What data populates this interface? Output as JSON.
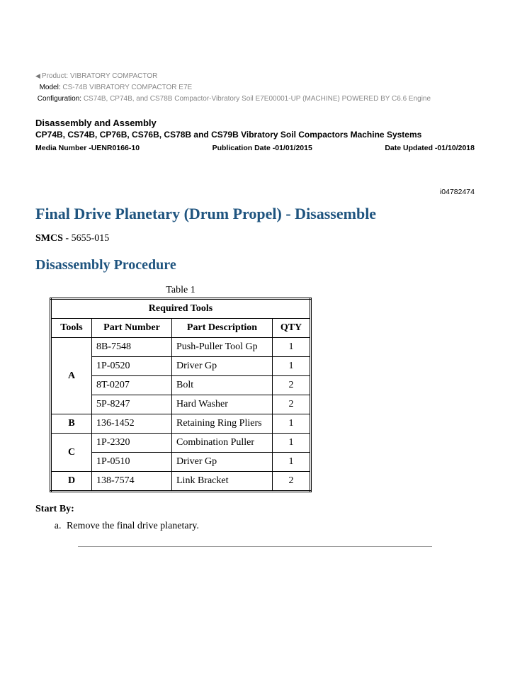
{
  "product": {
    "product_label": "Product:",
    "product_value": "VIBRATORY COMPACTOR",
    "model_label": "Model:",
    "model_value": "CS-74B VIBRATORY COMPACTOR E7E",
    "config_label": "Configuration:",
    "config_value": "CS74B, CP74B, and CS78B Compactor-Vibratory Soil E7E00001-UP (MACHINE) POWERED BY C6.6 Engine"
  },
  "header": {
    "section_title": "Disassembly and Assembly",
    "subtitle": "CP74B, CS74B, CP76B, CS76B, CS78B and CS79B Vibratory Soil Compactors Machine Systems",
    "media_number": "Media Number -UENR0166-10",
    "pub_date": "Publication Date -01/01/2015",
    "date_updated": "Date Updated -01/10/2018",
    "doc_id": "i04782474"
  },
  "main_title": "Final Drive Planetary (Drum Propel) - Disassemble",
  "smcs_label": "SMCS -",
  "smcs_value": "5655-015",
  "procedure_heading": "Disassembly Procedure",
  "table": {
    "caption": "Table 1",
    "title": "Required Tools",
    "columns": [
      "Tools",
      "Part Number",
      "Part Description",
      "QTY"
    ],
    "groups": [
      {
        "tool": "A",
        "rows": [
          {
            "pn": "8B-7548",
            "desc": "Push-Puller Tool Gp",
            "qty": "1"
          },
          {
            "pn": "1P-0520",
            "desc": "Driver Gp",
            "qty": "1"
          },
          {
            "pn": "8T-0207",
            "desc": "Bolt",
            "qty": "2"
          },
          {
            "pn": "5P-8247",
            "desc": "Hard Washer",
            "qty": "2"
          }
        ]
      },
      {
        "tool": "B",
        "rows": [
          {
            "pn": "136-1452",
            "desc": "Retaining Ring Pliers",
            "qty": "1"
          }
        ]
      },
      {
        "tool": "C",
        "rows": [
          {
            "pn": "1P-2320",
            "desc": "Combination Puller",
            "qty": "1"
          },
          {
            "pn": "1P-0510",
            "desc": "Driver Gp",
            "qty": "1"
          }
        ]
      },
      {
        "tool": "D",
        "rows": [
          {
            "pn": "138-7574",
            "desc": "Link Bracket",
            "qty": "2"
          }
        ]
      }
    ]
  },
  "start_by_label": "Start By:",
  "start_by_items": [
    "Remove the final drive planetary."
  ]
}
